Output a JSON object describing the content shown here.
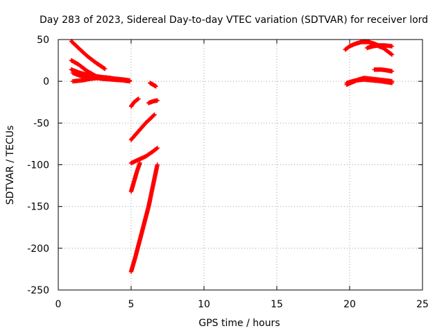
{
  "chart_data": {
    "type": "scatter",
    "title": "Day 283 of 2023, Sidereal Day-to-day VTEC variation (SDTVAR) for receiver lord",
    "xlabel": "GPS time / hours",
    "ylabel": "SDTVAR / TECUs",
    "xlim": [
      0,
      25
    ],
    "ylim": [
      -250,
      50
    ],
    "xticks": [
      0,
      5,
      10,
      15,
      20,
      25
    ],
    "yticks": [
      -250,
      -200,
      -150,
      -100,
      -50,
      0,
      50
    ],
    "grid": true,
    "legend": "none",
    "marker": "plus",
    "color": "#ff0000",
    "series": [
      {
        "points": [
          [
            0.9,
            48
          ],
          [
            1.5,
            38
          ],
          [
            2.0,
            30
          ],
          [
            2.6,
            22
          ],
          [
            3.2,
            15
          ]
        ]
      },
      {
        "points": [
          [
            0.9,
            25
          ],
          [
            1.4,
            20
          ],
          [
            2.0,
            12
          ],
          [
            2.6,
            6
          ],
          [
            3.2,
            4
          ]
        ]
      },
      {
        "points": [
          [
            0.9,
            14
          ],
          [
            1.5,
            10
          ],
          [
            2.2,
            7
          ],
          [
            3.0,
            5
          ],
          [
            3.6,
            4
          ]
        ]
      },
      {
        "points": [
          [
            1.0,
            10
          ],
          [
            1.6,
            6
          ],
          [
            2.3,
            5
          ],
          [
            3.0,
            3
          ],
          [
            3.8,
            2
          ],
          [
            4.5,
            1
          ],
          [
            4.9,
            0
          ]
        ]
      },
      {
        "points": [
          [
            1.0,
            0
          ],
          [
            1.6,
            1
          ],
          [
            2.2,
            3
          ],
          [
            2.8,
            4
          ],
          [
            3.4,
            4
          ],
          [
            4.0,
            3
          ],
          [
            4.5,
            2
          ],
          [
            4.9,
            1
          ]
        ]
      },
      {
        "points": [
          [
            5.0,
            -30
          ],
          [
            5.2,
            -25
          ],
          [
            5.5,
            -21
          ]
        ]
      },
      {
        "points": [
          [
            6.3,
            -2
          ],
          [
            6.5,
            -4
          ],
          [
            6.7,
            -6
          ]
        ]
      },
      {
        "points": [
          [
            6.2,
            -26
          ],
          [
            6.5,
            -24
          ],
          [
            6.8,
            -23
          ]
        ]
      },
      {
        "points": [
          [
            5.0,
            -70
          ],
          [
            5.5,
            -60
          ],
          [
            6.0,
            -50
          ],
          [
            6.6,
            -40
          ]
        ]
      },
      {
        "points": [
          [
            5.0,
            -98
          ],
          [
            5.5,
            -94
          ],
          [
            6.0,
            -90
          ],
          [
            6.5,
            -84
          ],
          [
            6.8,
            -80
          ]
        ]
      },
      {
        "points": [
          [
            5.0,
            -132
          ],
          [
            5.2,
            -120
          ],
          [
            5.4,
            -108
          ],
          [
            5.6,
            -98
          ]
        ]
      },
      {
        "points": [
          [
            5.0,
            -228
          ],
          [
            5.3,
            -210
          ],
          [
            5.6,
            -190
          ],
          [
            5.9,
            -170
          ],
          [
            6.2,
            -150
          ],
          [
            6.5,
            -125
          ],
          [
            6.8,
            -100
          ]
        ]
      },
      {
        "points": [
          [
            19.7,
            38
          ],
          [
            20.0,
            42
          ],
          [
            20.4,
            45
          ],
          [
            20.8,
            47
          ],
          [
            21.3,
            47
          ],
          [
            21.7,
            45
          ],
          [
            22.1,
            42
          ]
        ]
      },
      {
        "points": [
          [
            21.2,
            40
          ],
          [
            21.6,
            42
          ],
          [
            22.0,
            43
          ],
          [
            22.4,
            43
          ],
          [
            22.9,
            42
          ]
        ]
      },
      {
        "points": [
          [
            22.0,
            42
          ],
          [
            22.3,
            40
          ],
          [
            22.6,
            36
          ],
          [
            22.9,
            32
          ]
        ]
      },
      {
        "points": [
          [
            21.7,
            14
          ],
          [
            22.2,
            14
          ],
          [
            22.6,
            13
          ],
          [
            22.9,
            12
          ]
        ]
      },
      {
        "points": [
          [
            19.8,
            -4
          ],
          [
            20.2,
            -1
          ],
          [
            20.6,
            2
          ],
          [
            21.0,
            4
          ],
          [
            21.5,
            3
          ],
          [
            22.0,
            2
          ],
          [
            22.5,
            1
          ],
          [
            22.9,
            0
          ]
        ]
      },
      {
        "points": [
          [
            19.8,
            -2
          ],
          [
            20.4,
            1
          ],
          [
            21.0,
            2
          ],
          [
            21.6,
            1
          ],
          [
            22.2,
            0
          ],
          [
            22.9,
            -2
          ]
        ]
      }
    ]
  }
}
